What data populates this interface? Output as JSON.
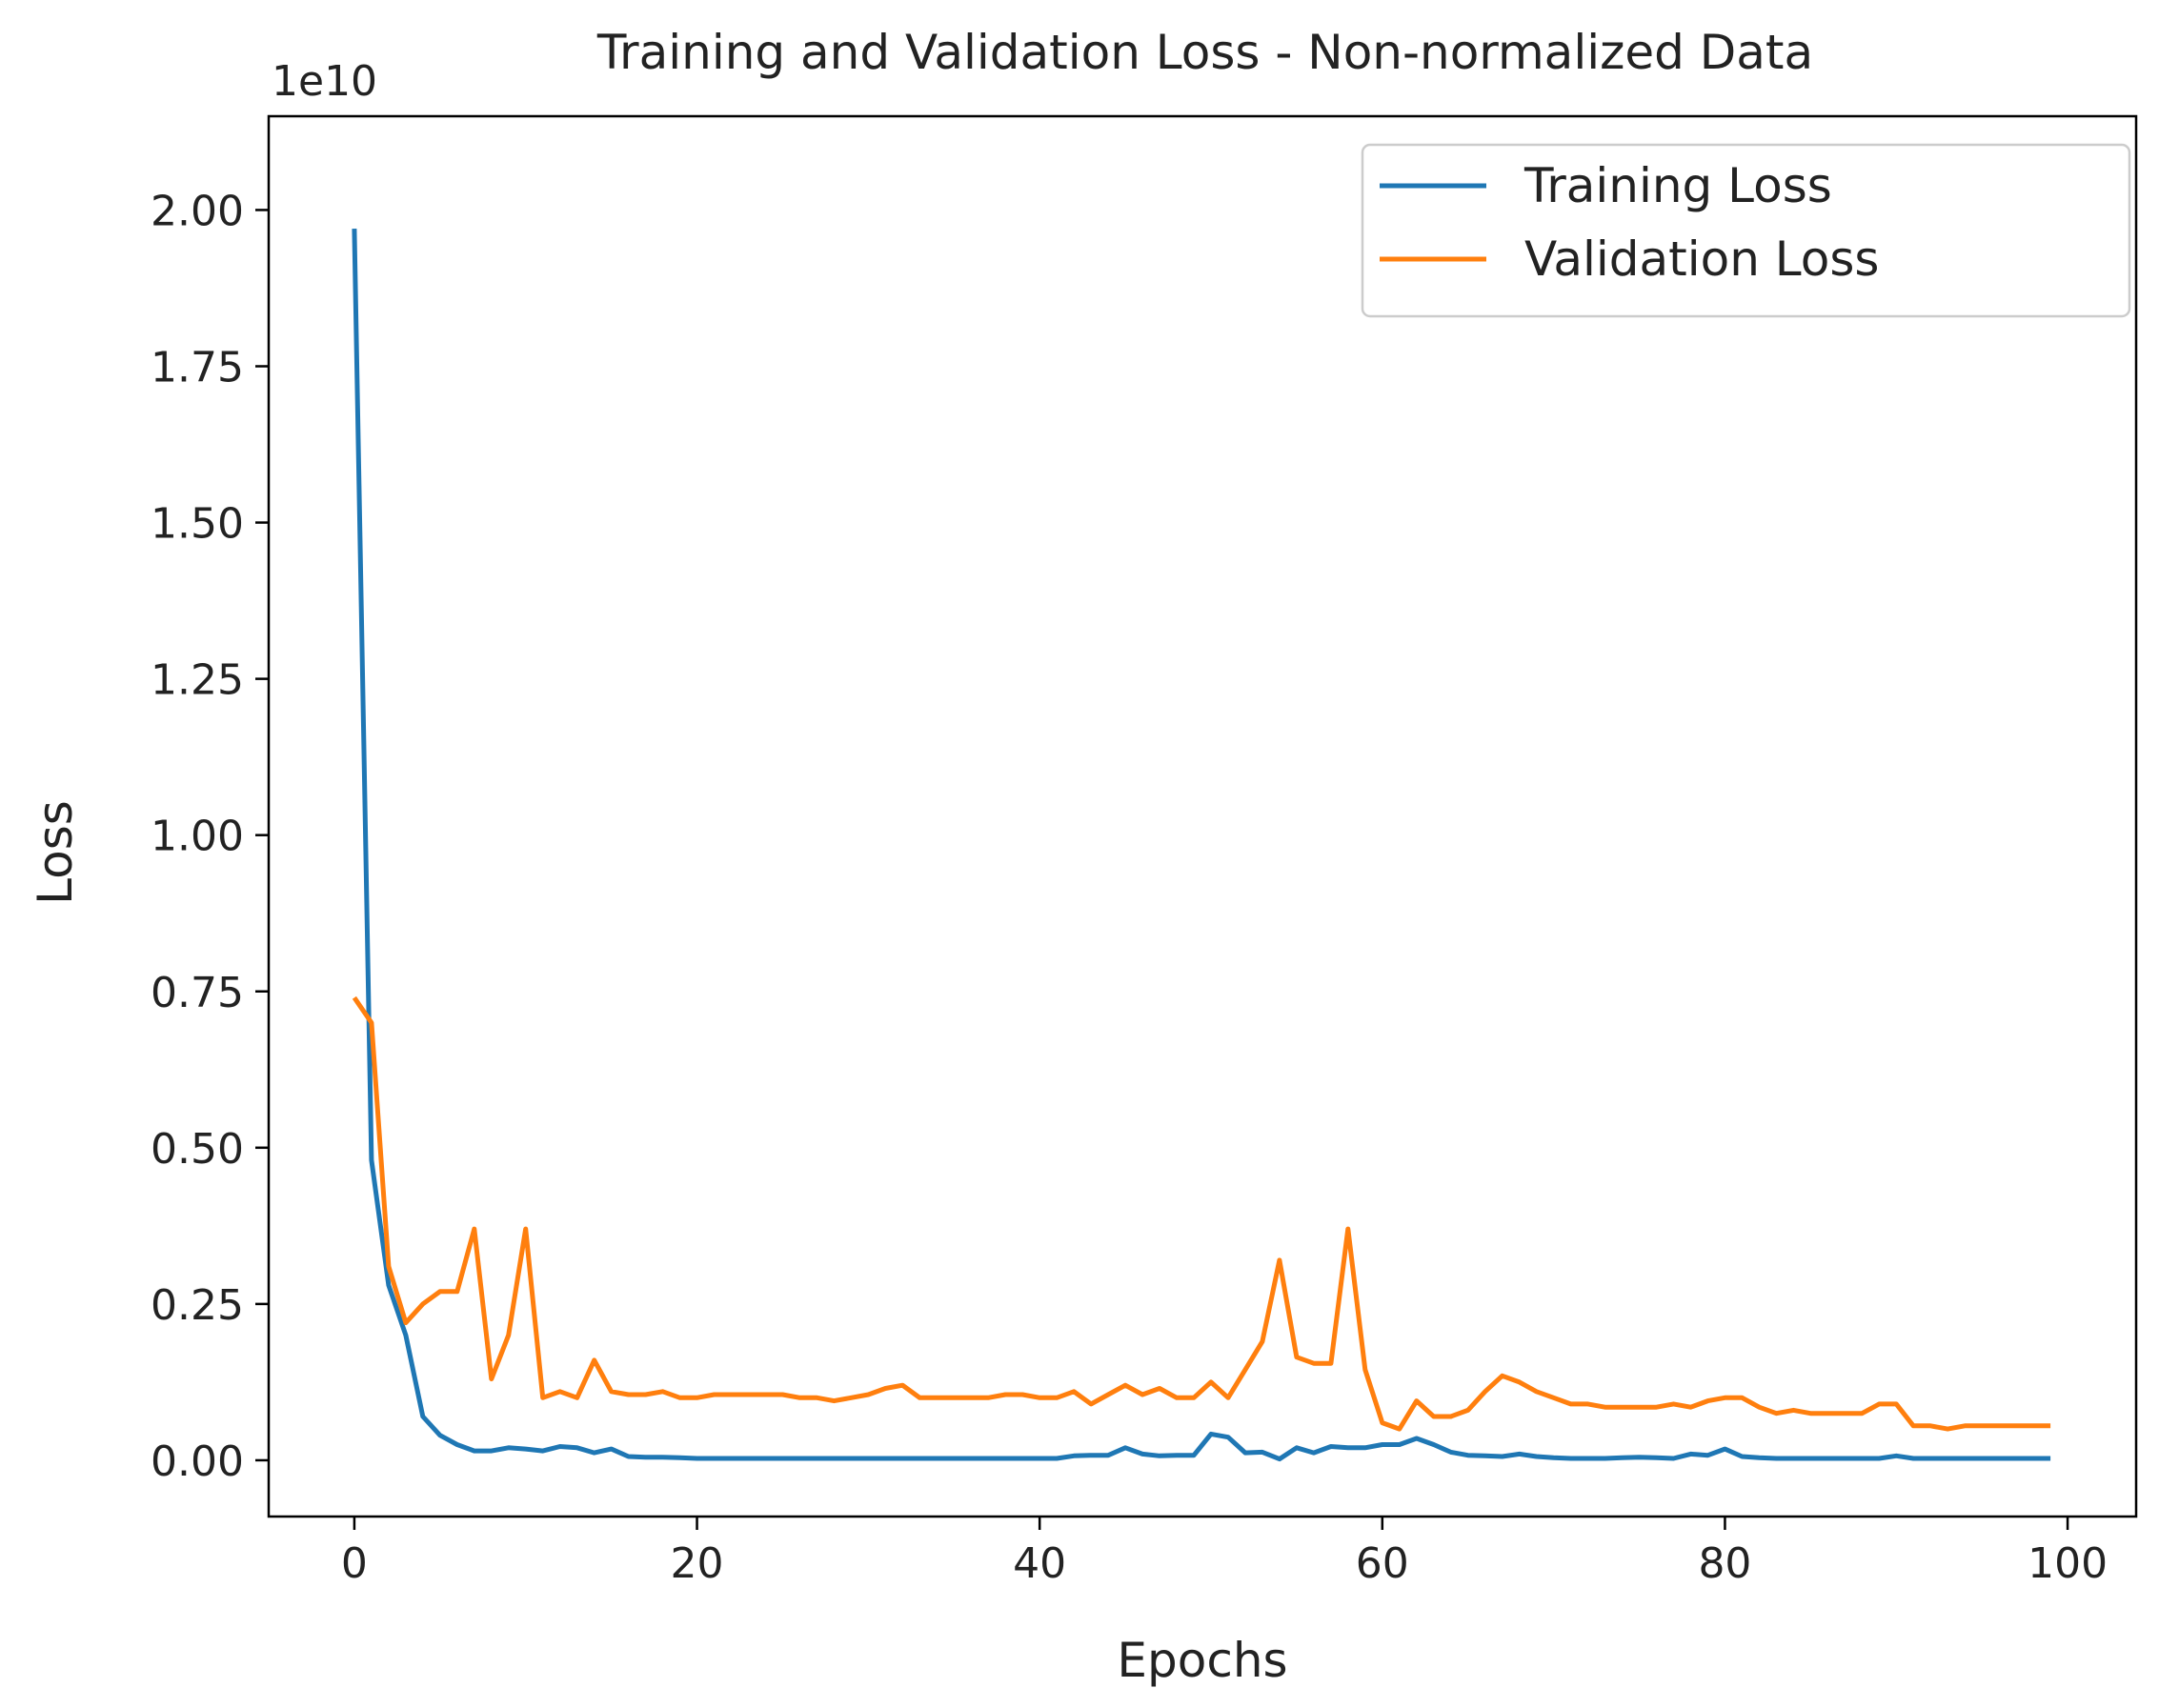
{
  "chart_data": {
    "type": "line",
    "title": "Training and Validation Loss - Non-normalized Data",
    "xlabel": "Epochs",
    "ylabel": "Loss",
    "y_offset_label": "1e10",
    "xlim": [
      -5,
      104
    ],
    "ylim": [
      -0.09,
      2.15
    ],
    "x_ticks": [
      0,
      20,
      40,
      60,
      80,
      100
    ],
    "x_tick_labels": [
      "0",
      "20",
      "40",
      "60",
      "80",
      "100"
    ],
    "y_ticks": [
      0.0,
      0.25,
      0.5,
      0.75,
      1.0,
      1.25,
      1.5,
      1.75,
      2.0
    ],
    "y_tick_labels": [
      "0.00",
      "0.25",
      "0.50",
      "0.75",
      "1.00",
      "1.25",
      "1.50",
      "1.75",
      "2.00"
    ],
    "grid": false,
    "legend_position": "top-right",
    "series": [
      {
        "name": "Training Loss",
        "color": "#1f77b4",
        "x": [
          0,
          1,
          2,
          3,
          4,
          5,
          6,
          7,
          8,
          9,
          10,
          11,
          12,
          13,
          14,
          15,
          16,
          17,
          18,
          19,
          20,
          21,
          22,
          23,
          24,
          25,
          26,
          27,
          28,
          29,
          30,
          31,
          32,
          33,
          34,
          35,
          36,
          37,
          38,
          39,
          40,
          41,
          42,
          43,
          44,
          45,
          46,
          47,
          48,
          49,
          50,
          51,
          52,
          53,
          54,
          55,
          56,
          57,
          58,
          59,
          60,
          61,
          62,
          63,
          64,
          65,
          66,
          67,
          68,
          69,
          70,
          71,
          72,
          73,
          74,
          75,
          76,
          77,
          78,
          79,
          80,
          81,
          82,
          83,
          84,
          85,
          86,
          87,
          88,
          89,
          90,
          91,
          92,
          93,
          94,
          95,
          96,
          97,
          98,
          99
        ],
        "values": [
          1.97,
          0.48,
          0.28,
          0.2,
          0.07,
          0.04,
          0.025,
          0.015,
          0.015,
          0.02,
          0.018,
          0.015,
          0.022,
          0.02,
          0.012,
          0.018,
          0.006,
          0.005,
          0.005,
          0.004,
          0.003,
          0.003,
          0.003,
          0.003,
          0.003,
          0.003,
          0.003,
          0.003,
          0.003,
          0.003,
          0.003,
          0.003,
          0.003,
          0.003,
          0.003,
          0.003,
          0.003,
          0.003,
          0.003,
          0.003,
          0.003,
          0.003,
          0.007,
          0.008,
          0.008,
          0.02,
          0.01,
          0.007,
          0.008,
          0.008,
          0.042,
          0.037,
          0.012,
          0.013,
          0.002,
          0.02,
          0.012,
          0.022,
          0.02,
          0.02,
          0.025,
          0.025,
          0.035,
          0.025,
          0.013,
          0.008,
          0.007,
          0.006,
          0.01,
          0.006,
          0.004,
          0.003,
          0.003,
          0.003,
          0.004,
          0.005,
          0.004,
          0.003,
          0.01,
          0.008,
          0.018,
          0.006,
          0.004,
          0.003,
          0.003,
          0.003,
          0.003,
          0.003,
          0.003,
          0.003,
          0.007,
          0.003,
          0.003,
          0.003,
          0.003,
          0.003,
          0.003,
          0.003,
          0.003,
          0.003
        ]
      },
      {
        "name": "Validation Loss",
        "color": "#ff7f0e",
        "x": [
          0,
          1,
          2,
          3,
          4,
          5,
          6,
          7,
          8,
          9,
          10,
          11,
          12,
          13,
          14,
          15,
          16,
          17,
          18,
          19,
          20,
          21,
          22,
          23,
          24,
          25,
          26,
          27,
          28,
          29,
          30,
          31,
          32,
          33,
          34,
          35,
          36,
          37,
          38,
          39,
          40,
          41,
          42,
          43,
          44,
          45,
          46,
          47,
          48,
          49,
          50,
          51,
          52,
          53,
          54,
          55,
          56,
          57,
          58,
          59,
          60,
          61,
          62,
          63,
          64,
          65,
          66,
          67,
          68,
          69,
          70,
          71,
          72,
          73,
          74,
          75,
          76,
          77,
          78,
          79,
          80,
          81,
          82,
          83,
          84,
          85,
          86,
          87,
          88,
          89,
          90,
          91,
          92,
          93,
          94,
          95,
          96,
          97,
          98,
          99
        ],
        "values": [
          0.74,
          0.7,
          0.31,
          0.22,
          0.25,
          0.27,
          0.27,
          0.37,
          0.13,
          0.2,
          0.37,
          0.1,
          0.11,
          0.1,
          0.16,
          0.11,
          0.105,
          0.105,
          0.11,
          0.1,
          0.1,
          0.105,
          0.105,
          0.105,
          0.105,
          0.105,
          0.1,
          0.1,
          0.095,
          0.1,
          0.105,
          0.115,
          0.12,
          0.1,
          0.1,
          0.1,
          0.1,
          0.1,
          0.105,
          0.105,
          0.1,
          0.1,
          0.11,
          0.09,
          0.105,
          0.12,
          0.105,
          0.115,
          0.1,
          0.1,
          0.125,
          0.1,
          0.145,
          0.19,
          0.32,
          0.165,
          0.155,
          0.155,
          0.37,
          0.145,
          0.06,
          0.05,
          0.095,
          0.07,
          0.07,
          0.08,
          0.11,
          0.135,
          0.125,
          0.11,
          0.1,
          0.09,
          0.09,
          0.085,
          0.085,
          0.085,
          0.085,
          0.09,
          0.085,
          0.095,
          0.1,
          0.1,
          0.085,
          0.075,
          0.08,
          0.075,
          0.075,
          0.075,
          0.075,
          0.09,
          0.09,
          0.055,
          0.055,
          0.05,
          0.055,
          0.055,
          0.055,
          0.055,
          0.055,
          0.055
        ]
      }
    ]
  }
}
